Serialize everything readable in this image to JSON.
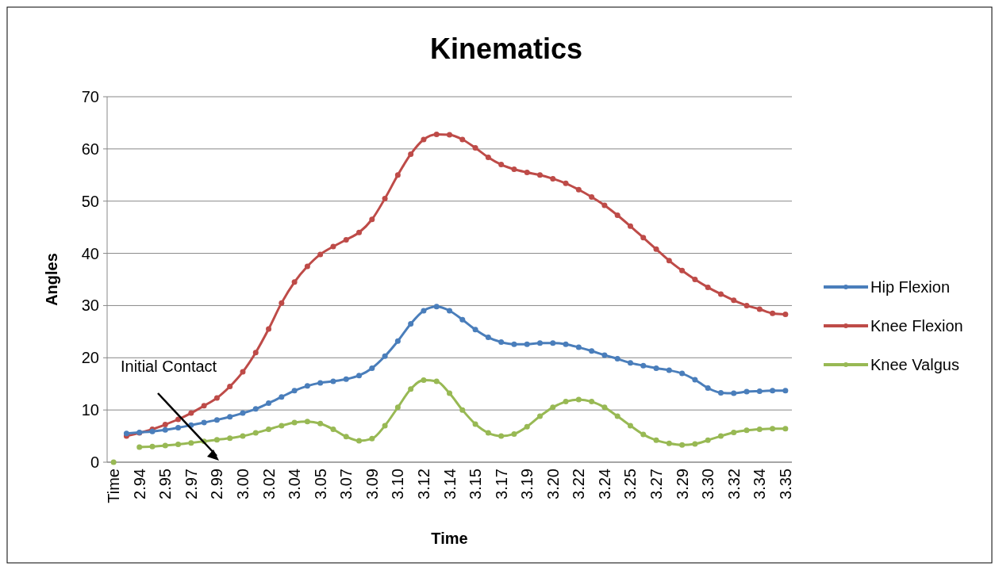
{
  "chart_data": {
    "type": "line",
    "title": "Kinematics",
    "xlabel": "Time",
    "ylabel": "Angles",
    "categories": [
      "Time",
      null,
      "2.94",
      null,
      "2.95",
      null,
      "2.97",
      null,
      "2.99",
      null,
      "3.00",
      null,
      "3.02",
      null,
      "3.04",
      null,
      "3.05",
      null,
      "3.07",
      null,
      "3.09",
      null,
      "3.10",
      null,
      "3.12",
      null,
      "3.14",
      null,
      "3.15",
      null,
      "3.17",
      null,
      "3.19",
      null,
      "3.20",
      null,
      "3.22",
      null,
      "3.24",
      null,
      "3.25",
      null,
      "3.27",
      null,
      "3.29",
      null,
      "3.30",
      null,
      "3.32",
      null,
      "3.34",
      null,
      "3.35"
    ],
    "series": [
      {
        "name": "Hip Flexion",
        "color": "#4a7ebb",
        "values": [
          null,
          5.5,
          5.7,
          5.9,
          6.2,
          6.6,
          7.1,
          7.6,
          8.1,
          8.7,
          9.4,
          10.2,
          11.3,
          12.5,
          13.7,
          14.6,
          15.2,
          15.5,
          15.9,
          16.6,
          18.0,
          20.3,
          23.2,
          26.5,
          29.0,
          29.8,
          29.0,
          27.3,
          25.4,
          23.9,
          23.0,
          22.6,
          22.6,
          22.8,
          22.8,
          22.6,
          22.0,
          21.3,
          20.5,
          19.8,
          19.0,
          18.5,
          18.0,
          17.6,
          17.0,
          15.8,
          14.2,
          13.3,
          13.2,
          13.5,
          13.6,
          13.7,
          13.7
        ]
      },
      {
        "name": "Knee Flexion",
        "color": "#be4b48",
        "values": [
          null,
          5.0,
          5.6,
          6.3,
          7.2,
          8.2,
          9.4,
          10.8,
          12.3,
          14.5,
          17.3,
          21.0,
          25.5,
          30.5,
          34.5,
          37.5,
          39.8,
          41.3,
          42.6,
          44.0,
          46.5,
          50.5,
          55.0,
          59.0,
          61.8,
          62.8,
          62.7,
          61.8,
          60.2,
          58.4,
          57.0,
          56.1,
          55.5,
          55.0,
          54.3,
          53.4,
          52.2,
          50.8,
          49.2,
          47.3,
          45.2,
          43.0,
          40.8,
          38.6,
          36.7,
          35.0,
          33.5,
          32.2,
          31.0,
          30.0,
          29.3,
          28.5,
          28.3
        ]
      },
      {
        "name": "Knee Valgus",
        "color": "#98b954",
        "values": [
          0,
          null,
          2.9,
          3.0,
          3.2,
          3.4,
          3.7,
          4.0,
          4.3,
          4.6,
          5.0,
          5.6,
          6.3,
          7.0,
          7.6,
          7.8,
          7.4,
          6.3,
          4.9,
          4.1,
          4.5,
          7.0,
          10.5,
          14.0,
          15.7,
          15.5,
          13.2,
          10.0,
          7.3,
          5.6,
          5.0,
          5.4,
          6.8,
          8.8,
          10.5,
          11.6,
          12.0,
          11.6,
          10.5,
          8.8,
          7.0,
          5.3,
          4.2,
          3.6,
          3.3,
          3.5,
          4.2,
          5.0,
          5.7,
          6.1,
          6.3,
          6.4,
          6.4
        ]
      }
    ],
    "ylim": [
      0,
      70
    ],
    "yticks": [
      0,
      10,
      20,
      30,
      40,
      50,
      60,
      70
    ],
    "grid": "y",
    "legend": "right",
    "marker": "circle",
    "annotations": [
      "Initial Contact"
    ]
  }
}
